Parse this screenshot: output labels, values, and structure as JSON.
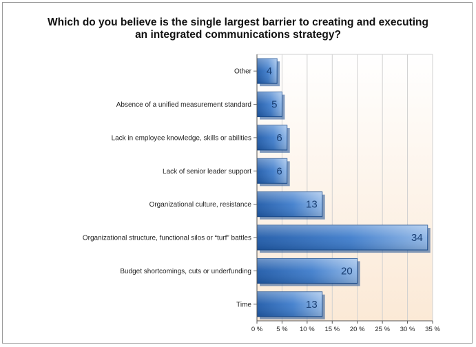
{
  "chart_data": {
    "type": "bar",
    "orientation": "horizontal",
    "title_lines": [
      "Which do you believe is the single largest barrier to creating and executing",
      "an integrated communications strategy?"
    ],
    "categories": [
      "Other",
      "Absence of a unified measurement standard",
      "Lack in employee knowledge, skills or abilities",
      "Lack of senior leader support",
      "Organizational culture, resistance",
      "Organizational structure, functional silos or “turf” battles",
      "Budget shortcomings, cuts or underfunding",
      "Time"
    ],
    "values": [
      4,
      5,
      6,
      6,
      13,
      34,
      20,
      13
    ],
    "data_labels": [
      "4",
      "5",
      "6",
      "6",
      "13",
      "34",
      "20",
      "13"
    ],
    "xlim": [
      0,
      35
    ],
    "x_ticks": [
      0,
      5,
      10,
      15,
      20,
      25,
      30,
      35
    ],
    "x_tick_labels": [
      "0 %",
      "5 %",
      "10 %",
      "15 %",
      "20 %",
      "25 %",
      "30 %",
      "35 %"
    ],
    "grid": true,
    "colors": {
      "bar_dark": "#1f5aa8",
      "bar_mid": "#3f7dcc",
      "bar_light": "#8fb6e6",
      "bar_edge": "#1b4f93",
      "plot_bg_top": "#ffffff",
      "plot_bg_bottom": "#fbe9d6",
      "grid": "#d0d0d0"
    }
  }
}
